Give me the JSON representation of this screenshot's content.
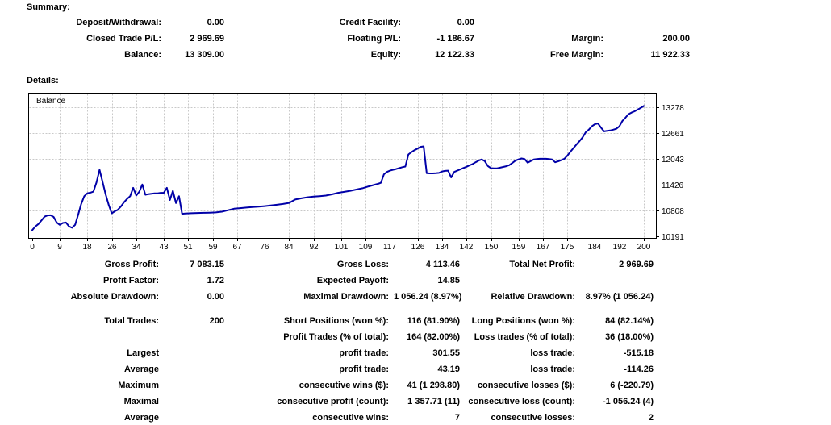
{
  "summary": {
    "heading": "Summary:",
    "rows": [
      {
        "c1l": "Deposit/Withdrawal:",
        "c1v": "0.00",
        "c2l": "Credit Facility:",
        "c2v": "0.00",
        "c3l": "",
        "c3v": ""
      },
      {
        "c1l": "Closed Trade P/L:",
        "c1v": "2 969.69",
        "c2l": "Floating P/L:",
        "c2v": "-1 186.67",
        "c3l": "Margin:",
        "c3v": "200.00"
      },
      {
        "c1l": "Balance:",
        "c1v": "13 309.00",
        "c2l": "Equity:",
        "c2v": "12 122.33",
        "c3l": "Free Margin:",
        "c3v": "11 922.33"
      }
    ]
  },
  "details": {
    "heading": "Details:",
    "rows": [
      {
        "c1l": "Gross Profit:",
        "c1v": "7 083.15",
        "c2l": "Gross Loss:",
        "c2v": "4 113.46",
        "c3l": "Total Net Profit:",
        "c3v": "2 969.69"
      },
      {
        "c1l": "Profit Factor:",
        "c1v": "1.72",
        "c2l": "Expected Payoff:",
        "c2v": "14.85",
        "c3l": "",
        "c3v": ""
      },
      {
        "c1l": "Absolute Drawdown:",
        "c1v": "0.00",
        "c2l": "Maximal Drawdown:",
        "c2v": "1 056.24 (8.97%)",
        "c3l": "Relative Drawdown:",
        "c3v": "8.97% (1 056.24)"
      },
      {
        "c1l": "Total Trades:",
        "c1v": "200",
        "c2l": "Short Positions (won %):",
        "c2v": "116 (81.90%)",
        "c3l": "Long Positions (won %):",
        "c3v": "84 (82.14%)"
      },
      {
        "c1l": "",
        "c1v": "",
        "c2l": "Profit Trades (% of total):",
        "c2v": "164 (82.00%)",
        "c3l": "Loss trades (% of total):",
        "c3v": "36 (18.00%)"
      },
      {
        "c1l": "Largest",
        "c1v": "",
        "c2l": "profit trade:",
        "c2v": "301.55",
        "c3l": "loss trade:",
        "c3v": "-515.18"
      },
      {
        "c1l": "Average",
        "c1v": "",
        "c2l": "profit trade:",
        "c2v": "43.19",
        "c3l": "loss trade:",
        "c3v": "-114.26"
      },
      {
        "c1l": "Maximum",
        "c1v": "",
        "c2l": "consecutive wins ($):",
        "c2v": "41 (1 298.80)",
        "c3l": "consecutive losses ($):",
        "c3v": "6 (-220.79)"
      },
      {
        "c1l": "Maximal",
        "c1v": "",
        "c2l": "consecutive profit (count):",
        "c2v": "1 357.71 (11)",
        "c3l": "consecutive loss (count):",
        "c3v": "-1 056.24 (4)"
      },
      {
        "c1l": "Average",
        "c1v": "",
        "c2l": "consecutive wins:",
        "c2v": "7",
        "c3l": "consecutive losses:",
        "c3v": "2"
      }
    ]
  },
  "chart_data": {
    "type": "line",
    "title": "Balance",
    "series_label": "Balance",
    "xlabel": "",
    "ylabel": "",
    "grid": true,
    "legend_position": "top-left-inside",
    "x_ticks": [
      0,
      9,
      18,
      26,
      34,
      43,
      51,
      59,
      67,
      76,
      84,
      92,
      101,
      109,
      117,
      126,
      134,
      142,
      150,
      159,
      167,
      175,
      184,
      192,
      200
    ],
    "y_ticks": [
      13278,
      12661,
      12043,
      11426,
      10808,
      10191
    ],
    "xlim": [
      0,
      204
    ],
    "ylim": [
      10191,
      13340
    ],
    "line_color": "#0000A8",
    "grid_color": "#C8C8C8",
    "border_color": "#000000",
    "points": [
      [
        0,
        10340
      ],
      [
        1,
        10425
      ],
      [
        2,
        10485
      ],
      [
        3,
        10570
      ],
      [
        4,
        10660
      ],
      [
        5,
        10690
      ],
      [
        6,
        10695
      ],
      [
        7,
        10655
      ],
      [
        8,
        10520
      ],
      [
        9,
        10465
      ],
      [
        10,
        10510
      ],
      [
        11,
        10520
      ],
      [
        12,
        10430
      ],
      [
        13,
        10395
      ],
      [
        14,
        10465
      ],
      [
        15,
        10700
      ],
      [
        16,
        10960
      ],
      [
        17,
        11150
      ],
      [
        18,
        11220
      ],
      [
        19,
        11235
      ],
      [
        20,
        11260
      ],
      [
        21,
        11480
      ],
      [
        22,
        11780
      ],
      [
        23,
        11490
      ],
      [
        24,
        11190
      ],
      [
        25,
        10940
      ],
      [
        26,
        10740
      ],
      [
        27,
        10790
      ],
      [
        28,
        10825
      ],
      [
        29,
        10905
      ],
      [
        30,
        11005
      ],
      [
        31,
        11085
      ],
      [
        32,
        11150
      ],
      [
        33,
        11350
      ],
      [
        34,
        11165
      ],
      [
        35,
        11260
      ],
      [
        36,
        11430
      ],
      [
        37,
        11185
      ],
      [
        38,
        11200
      ],
      [
        39,
        11210
      ],
      [
        40,
        11220
      ],
      [
        41,
        11220
      ],
      [
        42,
        11230
      ],
      [
        43,
        11230
      ],
      [
        44,
        11350
      ],
      [
        45,
        11060
      ],
      [
        46,
        11280
      ],
      [
        47,
        10985
      ],
      [
        48,
        11150
      ],
      [
        49,
        10730
      ],
      [
        50,
        10735
      ],
      [
        52,
        10742
      ],
      [
        54,
        10748
      ],
      [
        56,
        10752
      ],
      [
        58,
        10756
      ],
      [
        60,
        10762
      ],
      [
        62,
        10780
      ],
      [
        64,
        10815
      ],
      [
        66,
        10850
      ],
      [
        68,
        10865
      ],
      [
        70,
        10878
      ],
      [
        72,
        10890
      ],
      [
        74,
        10900
      ],
      [
        76,
        10912
      ],
      [
        78,
        10928
      ],
      [
        80,
        10945
      ],
      [
        82,
        10965
      ],
      [
        84,
        10990
      ],
      [
        85,
        11030
      ],
      [
        86,
        11070
      ],
      [
        88,
        11100
      ],
      [
        90,
        11125
      ],
      [
        92,
        11140
      ],
      [
        94,
        11152
      ],
      [
        96,
        11165
      ],
      [
        98,
        11195
      ],
      [
        100,
        11230
      ],
      [
        102,
        11255
      ],
      [
        104,
        11280
      ],
      [
        106,
        11310
      ],
      [
        108,
        11340
      ],
      [
        110,
        11385
      ],
      [
        112,
        11425
      ],
      [
        113,
        11445
      ],
      [
        114,
        11470
      ],
      [
        115,
        11675
      ],
      [
        116,
        11730
      ],
      [
        117,
        11762
      ],
      [
        118,
        11782
      ],
      [
        119,
        11800
      ],
      [
        120,
        11822
      ],
      [
        121,
        11845
      ],
      [
        122,
        11860
      ],
      [
        123,
        12150
      ],
      [
        124,
        12205
      ],
      [
        125,
        12252
      ],
      [
        126,
        12288
      ],
      [
        127,
        12330
      ],
      [
        128,
        12342
      ],
      [
        129,
        11702
      ],
      [
        130,
        11695
      ],
      [
        131,
        11695
      ],
      [
        132,
        11700
      ],
      [
        133,
        11708
      ],
      [
        134,
        11742
      ],
      [
        135,
        11755
      ],
      [
        136,
        11762
      ],
      [
        137,
        11600
      ],
      [
        138,
        11730
      ],
      [
        139,
        11762
      ],
      [
        140,
        11792
      ],
      [
        141,
        11825
      ],
      [
        142,
        11855
      ],
      [
        143,
        11888
      ],
      [
        144,
        11920
      ],
      [
        145,
        11962
      ],
      [
        146,
        12002
      ],
      [
        147,
        12030
      ],
      [
        148,
        11990
      ],
      [
        149,
        11872
      ],
      [
        150,
        11822
      ],
      [
        151,
        11815
      ],
      [
        152,
        11818
      ],
      [
        153,
        11832
      ],
      [
        154,
        11850
      ],
      [
        155,
        11868
      ],
      [
        156,
        11892
      ],
      [
        157,
        11945
      ],
      [
        158,
        12000
      ],
      [
        159,
        12030
      ],
      [
        160,
        12052
      ],
      [
        161,
        12040
      ],
      [
        162,
        11952
      ],
      [
        163,
        11992
      ],
      [
        164,
        12030
      ],
      [
        165,
        12040
      ],
      [
        166,
        12046
      ],
      [
        167,
        12046
      ],
      [
        168,
        12046
      ],
      [
        169,
        12040
      ],
      [
        170,
        12030
      ],
      [
        171,
        11962
      ],
      [
        172,
        11985
      ],
      [
        173,
        12012
      ],
      [
        174,
        12045
      ],
      [
        175,
        12122
      ],
      [
        176,
        12215
      ],
      [
        177,
        12302
      ],
      [
        178,
        12388
      ],
      [
        179,
        12470
      ],
      [
        180,
        12560
      ],
      [
        181,
        12680
      ],
      [
        182,
        12742
      ],
      [
        183,
        12822
      ],
      [
        184,
        12872
      ],
      [
        185,
        12892
      ],
      [
        186,
        12792
      ],
      [
        187,
        12702
      ],
      [
        188,
        12712
      ],
      [
        189,
        12722
      ],
      [
        190,
        12742
      ],
      [
        191,
        12762
      ],
      [
        192,
        12822
      ],
      [
        193,
        12952
      ],
      [
        194,
        13030
      ],
      [
        195,
        13112
      ],
      [
        196,
        13150
      ],
      [
        197,
        13182
      ],
      [
        198,
        13222
      ],
      [
        199,
        13262
      ],
      [
        200,
        13309
      ]
    ]
  }
}
